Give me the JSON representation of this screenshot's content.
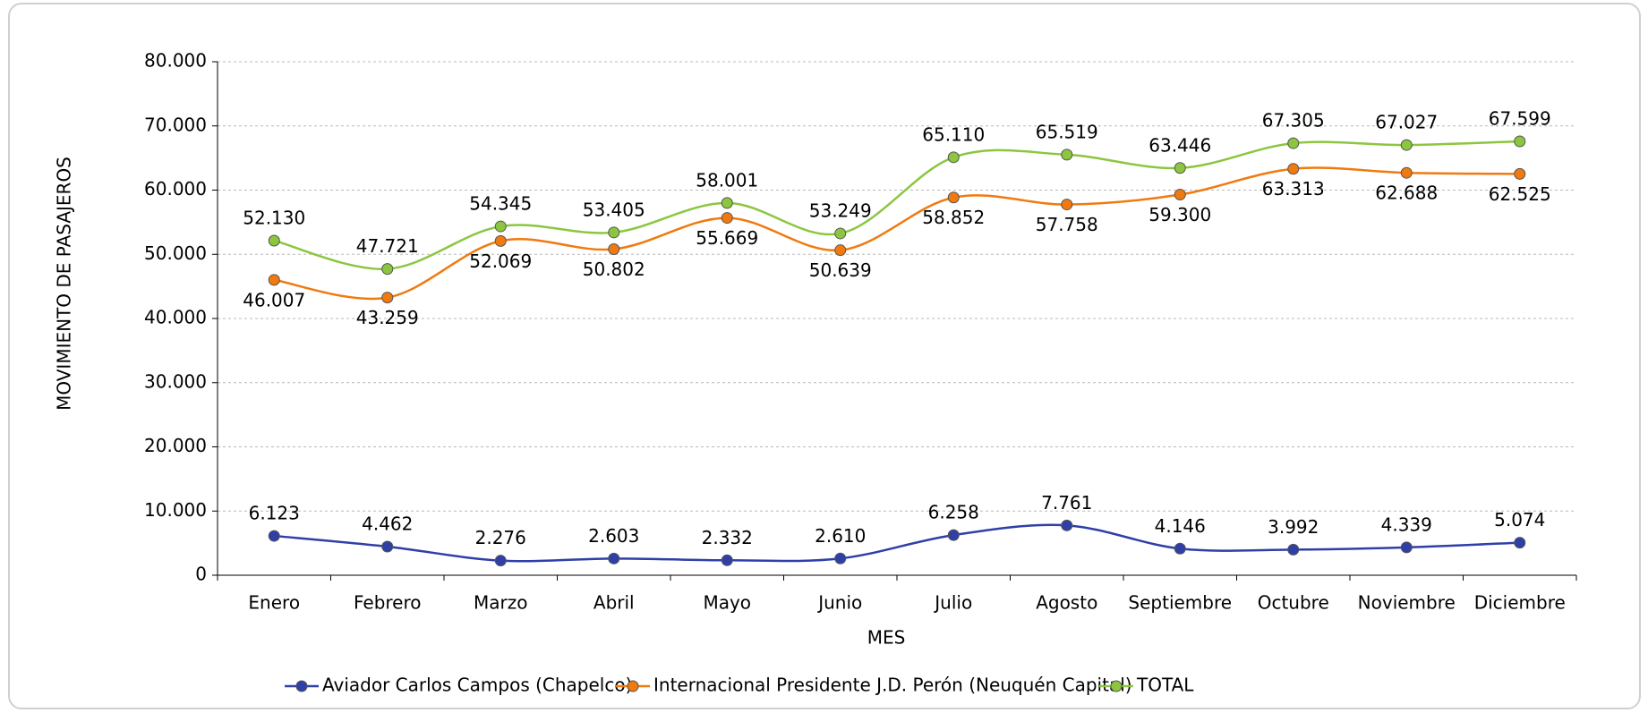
{
  "chart_data": {
    "type": "line",
    "x_label": "MES",
    "y_label": "MOVIMIENTO DE PASAJEROS",
    "categories": [
      "Enero",
      "Febrero",
      "Marzo",
      "Abril",
      "Mayo",
      "Junio",
      "Julio",
      "Agosto",
      "Septiembre",
      "Octubre",
      "Noviembre",
      "Diciembre"
    ],
    "series": [
      {
        "name": "Aviador Carlos Campos (Chapelco)",
        "color": "#2f3fa8",
        "values": [
          6123,
          4462,
          2276,
          2603,
          2332,
          2610,
          6258,
          7761,
          4146,
          3992,
          4339,
          5074
        ],
        "value_labels": [
          "6.123",
          "4.462",
          "2.276",
          "2.603",
          "2.332",
          "2.610",
          "6.258",
          "7.761",
          "4.146",
          "3.992",
          "4.339",
          "5.074"
        ]
      },
      {
        "name": "Internacional Presidente J.D. Perón (Neuquén Capital)",
        "color": "#f07a10",
        "values": [
          46007,
          43259,
          52069,
          50802,
          55669,
          50639,
          58852,
          57758,
          59300,
          63313,
          62688,
          62525
        ],
        "value_labels": [
          "46.007",
          "43.259",
          "52.069",
          "50.802",
          "55.669",
          "50.639",
          "58.852",
          "57.758",
          "59.300",
          "63.313",
          "62.688",
          "62.525"
        ]
      },
      {
        "name": "TOTAL",
        "color": "#8cc63f",
        "values": [
          52130,
          47721,
          54345,
          53405,
          58001,
          53249,
          65110,
          65519,
          63446,
          67305,
          67027,
          67599
        ],
        "value_labels": [
          "52.130",
          "47.721",
          "54.345",
          "53.405",
          "58.001",
          "53.249",
          "65.110",
          "65.519",
          "63.446",
          "67.305",
          "67.027",
          "67.599"
        ]
      }
    ],
    "ylim": [
      0,
      80000
    ],
    "yticks": [
      0,
      {
        "value": 10000,
        "label": "10.000"
      },
      {
        "value": 20000,
        "label": "20.000"
      },
      {
        "value": 30000,
        "label": "30.000"
      },
      {
        "value": 40000,
        "label": "40.000"
      },
      {
        "value": 50000,
        "label": "50.000"
      },
      {
        "value": 60000,
        "label": "60.000"
      },
      {
        "value": 70000,
        "label": "70.000"
      },
      {
        "value": 80000,
        "label": "80.000"
      }
    ],
    "grid": true,
    "legend": "bottom"
  }
}
